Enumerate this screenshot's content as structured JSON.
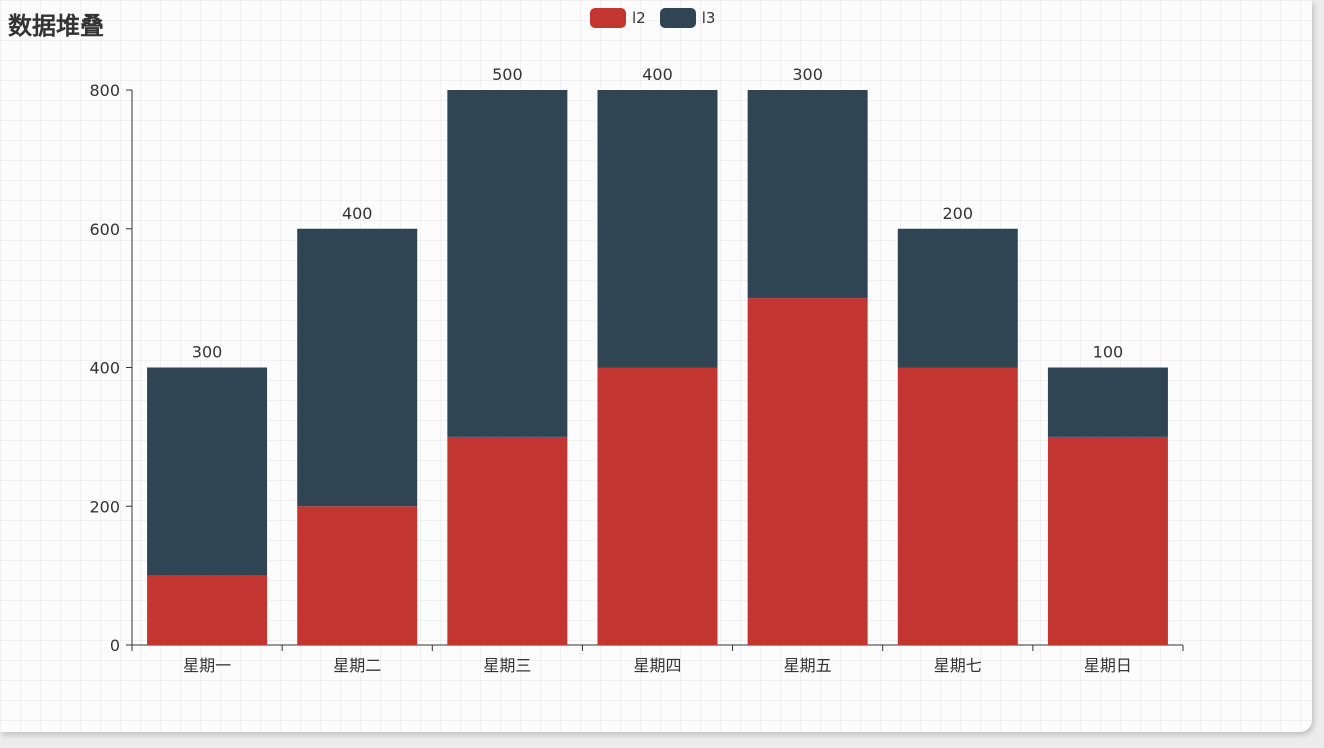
{
  "title": "数据堆叠",
  "legend": [
    {
      "name": "l2",
      "color": "#c23531"
    },
    {
      "name": "l3",
      "color": "#2f4554"
    }
  ],
  "chart_data": {
    "type": "bar",
    "stacked": true,
    "categories": [
      "星期一",
      "星期二",
      "星期三",
      "星期四",
      "星期五",
      "星期七",
      "星期日"
    ],
    "series": [
      {
        "name": "l2",
        "color": "#c23531",
        "values": [
          100,
          200,
          300,
          400,
          500,
          400,
          300
        ]
      },
      {
        "name": "l3",
        "color": "#2f4554",
        "values": [
          300,
          400,
          500,
          400,
          300,
          200,
          100
        ]
      }
    ],
    "ylim": [
      0,
      800
    ],
    "yticks": [
      0,
      200,
      400,
      600,
      800
    ],
    "legend_position": "top-center",
    "data_labels": "top of stack (l3 value)"
  }
}
